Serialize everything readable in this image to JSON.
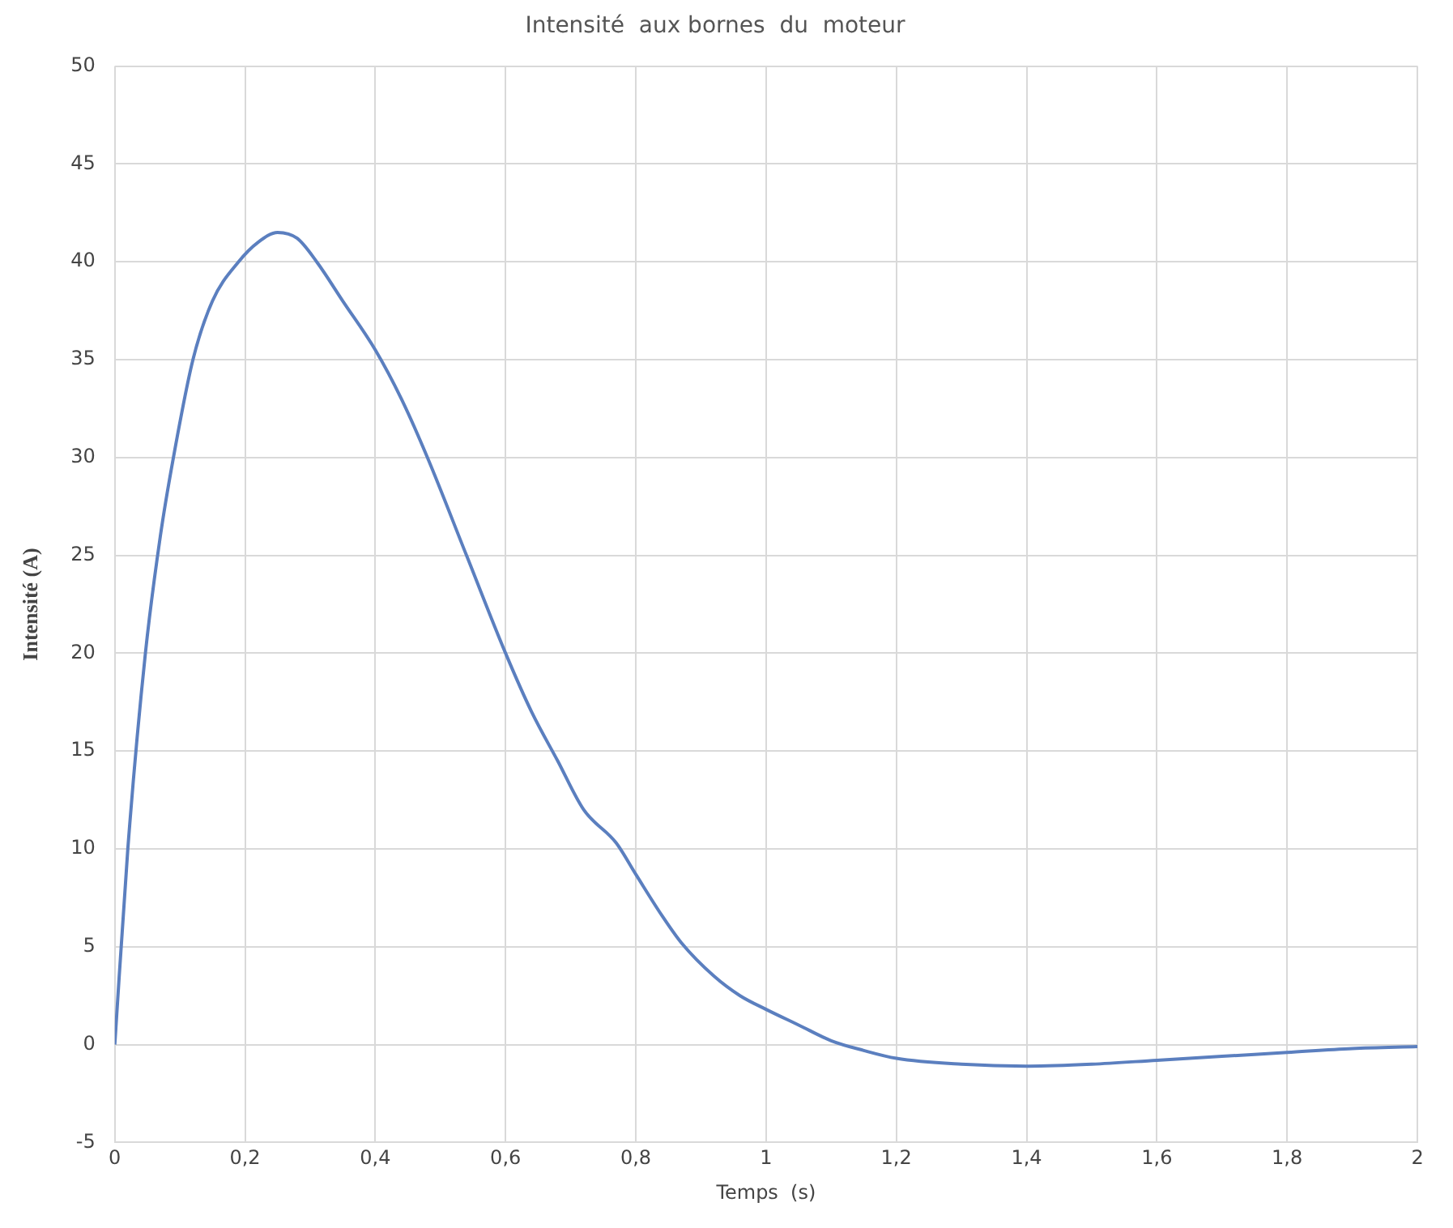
{
  "chart_data": {
    "type": "line",
    "title": "Intensité  aux bornes  du  moteur",
    "xlabel": "Temps  (s)",
    "ylabel": "Intensité (A)",
    "series": [
      {
        "color": "#5b7fbf",
        "x": [
          0,
          0.02,
          0.047,
          0.07,
          0.09,
          0.12,
          0.15,
          0.19,
          0.22,
          0.25,
          0.28,
          0.31,
          0.35,
          0.4,
          0.44,
          0.48,
          0.54,
          0.6,
          0.64,
          0.68,
          0.72,
          0.77,
          0.8,
          0.84,
          0.87,
          0.92,
          0.96,
          1.0,
          1.05,
          1.1,
          1.15,
          1.2,
          1.3,
          1.4,
          1.5,
          1.6,
          1.7,
          1.8,
          1.9,
          2.0
        ],
        "values": [
          0,
          10,
          20,
          26,
          30,
          35,
          38,
          40,
          41,
          41.5,
          41.2,
          40,
          38,
          35.5,
          33,
          30,
          25,
          20,
          17,
          14.5,
          12,
          10.3,
          8.7,
          6.6,
          5.2,
          3.5,
          2.5,
          1.8,
          1,
          0.2,
          -0.3,
          -0.7,
          -1,
          -1.1,
          -1,
          -0.8,
          -0.6,
          -0.4,
          -0.2,
          -0.1
        ]
      }
    ],
    "xlim": [
      0,
      2
    ],
    "xticks": [
      0,
      {
        "value": 0.2,
        "label": "0,2"
      },
      {
        "value": 0.4,
        "label": "0,4"
      },
      {
        "value": 0.6,
        "label": "0,6"
      },
      {
        "value": 0.8,
        "label": "0,8"
      },
      1,
      {
        "value": 1.2,
        "label": "1,2"
      },
      {
        "value": 1.4,
        "label": "1,4"
      },
      {
        "value": 1.6,
        "label": "1,6"
      },
      {
        "value": 1.8,
        "label": "1,8"
      },
      2
    ],
    "ylim": [
      -5,
      50
    ],
    "yticks": [
      -5,
      0,
      5,
      10,
      15,
      20,
      25,
      30,
      35,
      40,
      45,
      50
    ],
    "grid": true,
    "legend": false,
    "marker": "none",
    "line_style": "solid"
  }
}
